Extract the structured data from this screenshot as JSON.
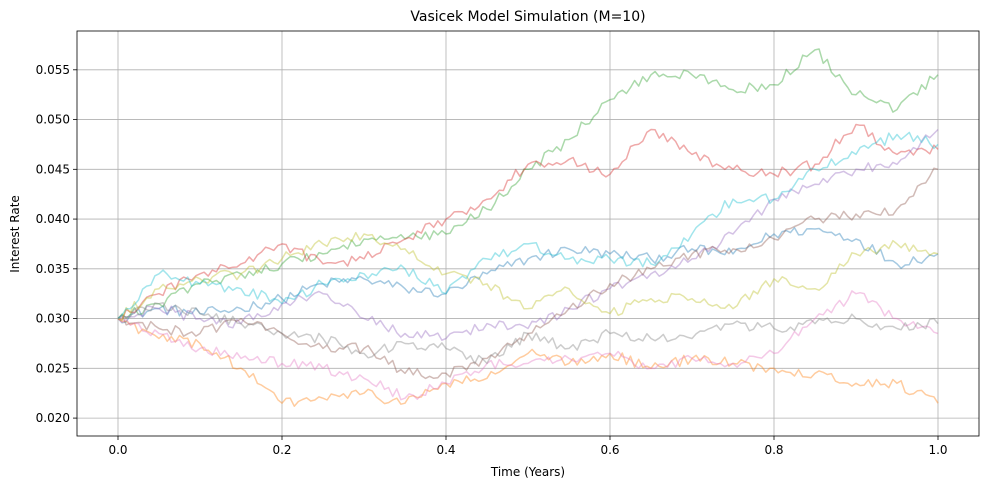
{
  "chart_data": {
    "type": "line",
    "title": "Vasicek Model Simulation (M=10)",
    "xlabel": "Time (Years)",
    "ylabel": "Interest Rate",
    "xlim": [
      -0.05,
      1.05
    ],
    "ylim": [
      0.0182,
      0.0589
    ],
    "xticks": [
      0.0,
      0.2,
      0.4,
      0.6,
      0.8,
      1.0
    ],
    "xtick_labels": [
      "0.0",
      "0.2",
      "0.4",
      "0.6",
      "0.8",
      "1.0"
    ],
    "yticks": [
      0.02,
      0.025,
      0.03,
      0.035,
      0.04,
      0.045,
      0.05,
      0.055
    ],
    "ytick_labels": [
      "0.020",
      "0.025",
      "0.030",
      "0.035",
      "0.040",
      "0.045",
      "0.050",
      "0.055"
    ],
    "grid": true,
    "x": [
      0.0,
      0.05,
      0.1,
      0.15,
      0.2,
      0.25,
      0.3,
      0.35,
      0.4,
      0.45,
      0.5,
      0.55,
      0.6,
      0.65,
      0.7,
      0.75,
      0.8,
      0.85,
      0.9,
      0.95,
      1.0
    ],
    "series": [
      {
        "color": "#1f77b4",
        "values": [
          0.03,
          0.031,
          0.0305,
          0.031,
          0.032,
          0.0335,
          0.034,
          0.033,
          0.0325,
          0.0345,
          0.036,
          0.037,
          0.0365,
          0.036,
          0.037,
          0.0365,
          0.0385,
          0.039,
          0.038,
          0.0355,
          0.0365
        ]
      },
      {
        "color": "#ff7f0e",
        "values": [
          0.03,
          0.028,
          0.0275,
          0.025,
          0.0215,
          0.022,
          0.0225,
          0.0215,
          0.0235,
          0.024,
          0.0265,
          0.0255,
          0.0265,
          0.025,
          0.026,
          0.0255,
          0.025,
          0.0245,
          0.0235,
          0.0235,
          0.0215
        ]
      },
      {
        "color": "#2ca02c",
        "values": [
          0.03,
          0.0315,
          0.0335,
          0.0345,
          0.0355,
          0.0365,
          0.038,
          0.038,
          0.0385,
          0.041,
          0.045,
          0.048,
          0.052,
          0.0545,
          0.0545,
          0.053,
          0.0535,
          0.057,
          0.0525,
          0.051,
          0.0545
        ]
      },
      {
        "color": "#d62728",
        "values": [
          0.03,
          0.0325,
          0.0345,
          0.0355,
          0.0375,
          0.0355,
          0.036,
          0.038,
          0.04,
          0.042,
          0.0455,
          0.046,
          0.0445,
          0.049,
          0.0465,
          0.045,
          0.0445,
          0.0455,
          0.0495,
          0.0465,
          0.047
        ]
      },
      {
        "color": "#9467bd",
        "values": [
          0.03,
          0.031,
          0.03,
          0.0295,
          0.0315,
          0.0325,
          0.03,
          0.0285,
          0.028,
          0.0295,
          0.029,
          0.031,
          0.033,
          0.0345,
          0.036,
          0.0385,
          0.042,
          0.0435,
          0.045,
          0.0455,
          0.049
        ]
      },
      {
        "color": "#8c564b",
        "values": [
          0.03,
          0.029,
          0.0285,
          0.03,
          0.0285,
          0.027,
          0.027,
          0.0245,
          0.0245,
          0.026,
          0.0285,
          0.031,
          0.0335,
          0.035,
          0.0365,
          0.037,
          0.038,
          0.04,
          0.0405,
          0.041,
          0.045
        ]
      },
      {
        "color": "#e377c2",
        "values": [
          0.03,
          0.0285,
          0.027,
          0.026,
          0.0255,
          0.025,
          0.024,
          0.022,
          0.0235,
          0.0255,
          0.0255,
          0.026,
          0.0265,
          0.025,
          0.026,
          0.0255,
          0.0265,
          0.03,
          0.0325,
          0.03,
          0.0285
        ]
      },
      {
        "color": "#7f7f7f",
        "values": [
          0.03,
          0.0315,
          0.0305,
          0.0295,
          0.0285,
          0.028,
          0.0265,
          0.0275,
          0.027,
          0.0255,
          0.0285,
          0.027,
          0.0285,
          0.028,
          0.028,
          0.0295,
          0.029,
          0.0295,
          0.03,
          0.029,
          0.0295
        ]
      },
      {
        "color": "#bcbd22",
        "values": [
          0.03,
          0.033,
          0.034,
          0.0345,
          0.036,
          0.0375,
          0.0385,
          0.037,
          0.0345,
          0.0335,
          0.031,
          0.033,
          0.0305,
          0.032,
          0.032,
          0.031,
          0.034,
          0.033,
          0.0365,
          0.0375,
          0.0365
        ]
      },
      {
        "color": "#17becf",
        "values": [
          0.03,
          0.0345,
          0.0335,
          0.033,
          0.0315,
          0.0335,
          0.0345,
          0.035,
          0.0325,
          0.036,
          0.0375,
          0.036,
          0.036,
          0.0355,
          0.0385,
          0.042,
          0.042,
          0.045,
          0.0465,
          0.0485,
          0.0475
        ]
      }
    ]
  }
}
